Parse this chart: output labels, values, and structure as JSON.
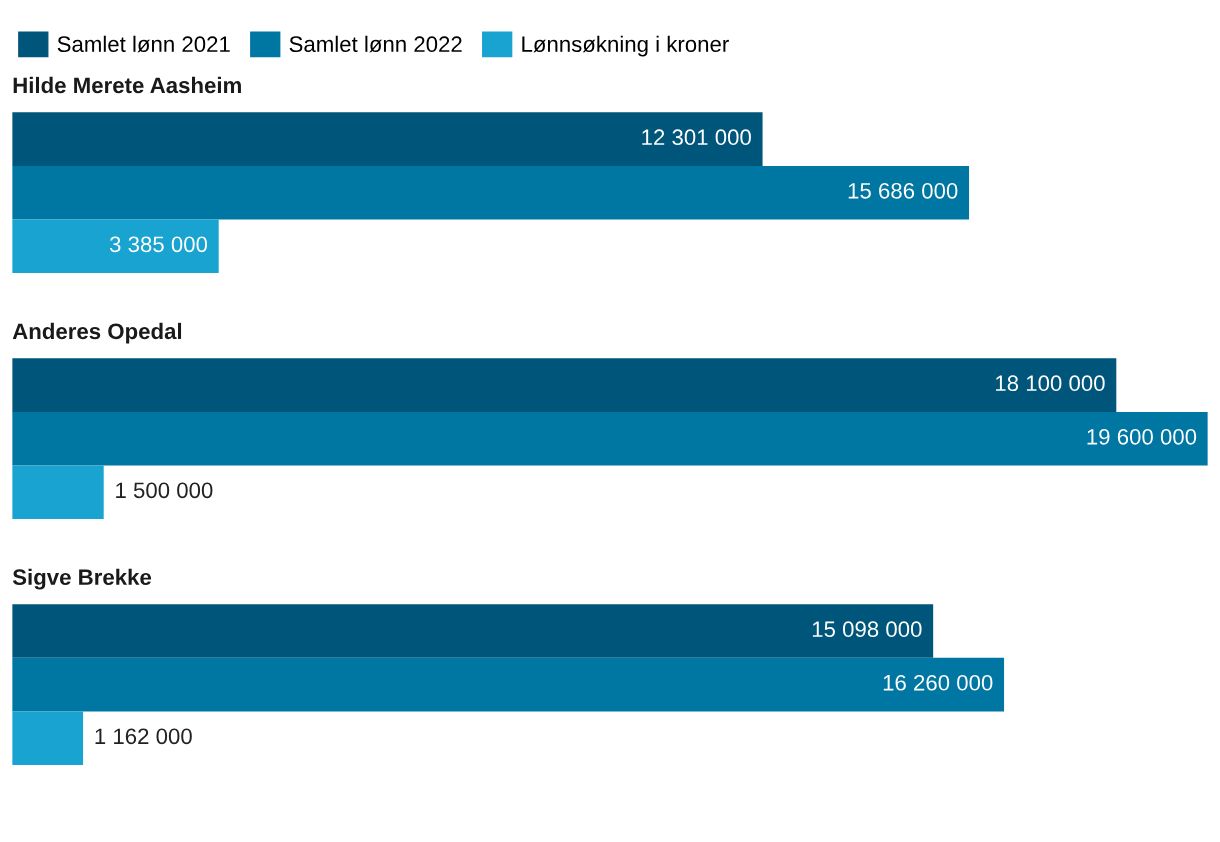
{
  "chart_data": {
    "type": "bar",
    "orientation": "horizontal",
    "categories": [
      "Hilde Merete Aasheim",
      "Anderes Opedal",
      "Sigve Brekke"
    ],
    "series": [
      {
        "name": "Samlet lønn 2021",
        "color": "#00557a",
        "values": [
          12301000,
          18100000,
          15098000
        ]
      },
      {
        "name": "Samlet lønn 2022",
        "color": "#0077a3",
        "values": [
          15686000,
          19600000,
          16260000
        ]
      },
      {
        "name": "Lønnsøkning i kroner",
        "color": "#18a3d0",
        "values": [
          3385000,
          1500000,
          1162000
        ]
      }
    ],
    "xlim": [
      0,
      19600000
    ],
    "data_labels": true,
    "legend": "top left",
    "tick_labels": false
  }
}
